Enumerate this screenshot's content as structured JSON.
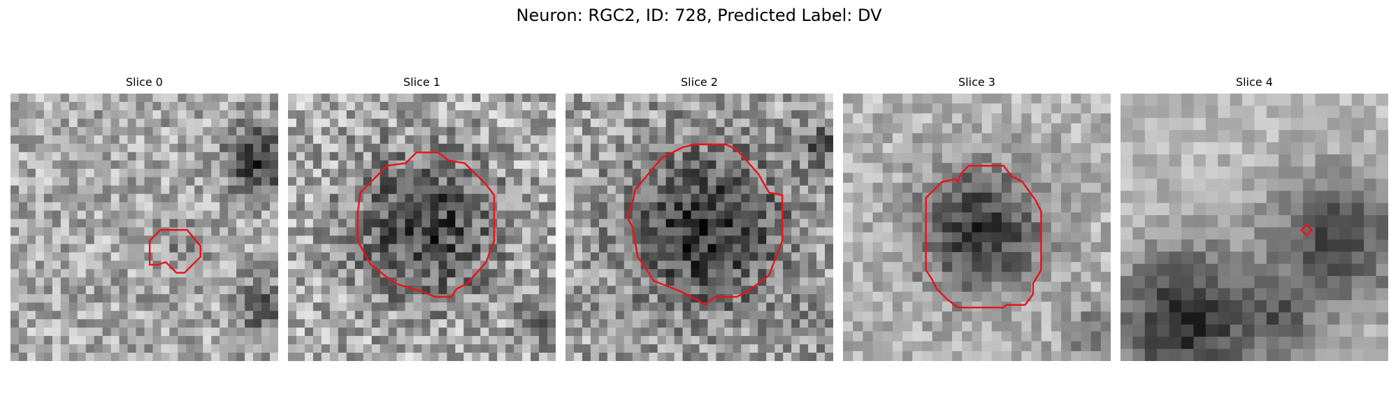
{
  "figure": {
    "title": "Neuron: RGC2, ID: 728, Predicted Label: DV"
  },
  "panels": [
    {
      "title": "Slice 0"
    },
    {
      "title": "Slice 1"
    },
    {
      "title": "Slice 2"
    },
    {
      "title": "Slice 3"
    },
    {
      "title": "Slice 4"
    }
  ],
  "contour_color": "#e8141b"
}
